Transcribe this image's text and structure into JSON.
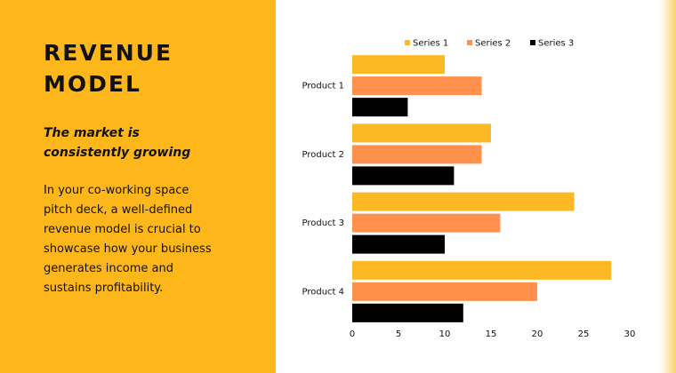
{
  "slide": {
    "title_lines": [
      "REVENUE",
      "MODEL"
    ],
    "subtitle_lines": [
      "The market is",
      "consistently growing"
    ],
    "body_lines": [
      "In your co-working space",
      "pitch deck, a well-defined",
      "revenue model is crucial to",
      "showcase how your business",
      "generates income and",
      "sustains profitability."
    ]
  },
  "chart_data": {
    "type": "bar",
    "orientation": "horizontal",
    "categories": [
      "Product 1",
      "Product 2",
      "Product 3",
      "Product 4"
    ],
    "series": [
      {
        "name": "Series 1",
        "color": "#fdb924",
        "values": [
          10,
          15,
          24,
          28
        ]
      },
      {
        "name": "Series 2",
        "color": "#ff914d",
        "values": [
          14,
          14,
          16,
          20
        ]
      },
      {
        "name": "Series 3",
        "color": "#000000",
        "values": [
          6,
          11,
          10,
          12
        ]
      }
    ],
    "xlim": [
      0,
      30
    ],
    "xticks": [
      0,
      5,
      10,
      15,
      20,
      25,
      30
    ],
    "grid": false,
    "legend": "top"
  }
}
